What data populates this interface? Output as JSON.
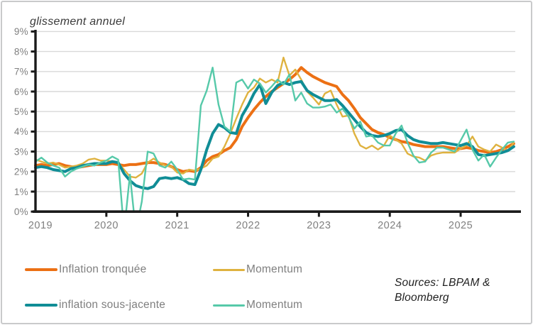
{
  "chart": {
    "title": "glissement annuel",
    "axis_color": "#1a1a1a",
    "grid_color": "#d9d9d9",
    "tick_label_color": "#7f7f7f"
  },
  "chart_data": {
    "type": "line",
    "title": "glissement annuel",
    "x_start": "2019-01",
    "x_end": "2025-10",
    "x_unit": "month",
    "ylim": [
      0,
      9
    ],
    "grid": true,
    "y_tick_labels": [
      "0%",
      "1%",
      "2%",
      "3%",
      "4%",
      "5%",
      "6%",
      "7%",
      "8%",
      "9%"
    ],
    "x_tick_labels": [
      "2019",
      "2020",
      "2021",
      "2022",
      "2023",
      "2024",
      "2025"
    ],
    "legend_position": "bottom",
    "series": [
      {
        "name": "Inflation tronquée",
        "color": "#ec7014",
        "thickness": "thick",
        "values": [
          2.3,
          2.35,
          2.3,
          2.35,
          2.4,
          2.3,
          2.25,
          2.2,
          2.25,
          2.3,
          2.35,
          2.35,
          2.35,
          2.4,
          2.35,
          2.3,
          2.35,
          2.35,
          2.4,
          2.45,
          2.45,
          2.4,
          2.35,
          2.25,
          2.1,
          2.0,
          2.05,
          2.0,
          2.2,
          2.55,
          2.75,
          2.85,
          3.05,
          3.2,
          3.6,
          4.25,
          4.7,
          5.1,
          5.45,
          5.75,
          6.0,
          6.2,
          6.4,
          6.6,
          6.85,
          7.2,
          6.95,
          6.75,
          6.6,
          6.45,
          6.35,
          6.25,
          5.85,
          5.55,
          5.15,
          4.7,
          4.4,
          4.1,
          3.95,
          3.85,
          3.7,
          3.6,
          3.5,
          3.45,
          3.35,
          3.3,
          3.25,
          3.25,
          3.25,
          3.25,
          3.2,
          3.15,
          3.15,
          3.2,
          3.15,
          3.05,
          3.0,
          2.95,
          3.0,
          3.1,
          3.25,
          3.4
        ]
      },
      {
        "name": "Momentum",
        "color": "#dfb23f",
        "thickness": "thin",
        "values": [
          2.6,
          2.5,
          2.4,
          2.45,
          2.35,
          2.2,
          2.25,
          2.3,
          2.4,
          2.6,
          2.65,
          2.55,
          2.55,
          2.5,
          2.45,
          2.1,
          1.75,
          1.7,
          1.9,
          2.45,
          2.65,
          2.45,
          2.3,
          2.25,
          1.95,
          1.9,
          2.1,
          2.05,
          2.15,
          2.3,
          2.65,
          2.75,
          3.25,
          3.9,
          4.65,
          5.35,
          5.95,
          6.2,
          6.65,
          6.45,
          6.6,
          6.45,
          7.7,
          6.8,
          7.1,
          6.6,
          6.0,
          5.7,
          5.35,
          5.9,
          6.05,
          5.35,
          4.75,
          4.8,
          3.9,
          3.3,
          3.15,
          3.3,
          3.1,
          3.3,
          3.8,
          3.6,
          3.4,
          2.9,
          2.75,
          2.7,
          2.55,
          2.8,
          2.9,
          2.95,
          2.95,
          2.95,
          3.15,
          3.3,
          3.75,
          3.25,
          3.1,
          3.0,
          3.35,
          3.2,
          3.05,
          3.45
        ]
      },
      {
        "name": "inflation sous-jacente",
        "color": "#108d96",
        "thickness": "thick",
        "values": [
          2.2,
          2.25,
          2.2,
          2.1,
          2.05,
          2.0,
          2.15,
          2.2,
          2.3,
          2.35,
          2.4,
          2.4,
          2.4,
          2.5,
          2.45,
          1.9,
          1.55,
          1.3,
          1.2,
          1.15,
          1.25,
          1.65,
          1.7,
          1.65,
          1.7,
          1.6,
          1.4,
          1.35,
          2.1,
          3.1,
          3.9,
          4.35,
          4.2,
          3.95,
          3.9,
          4.8,
          5.3,
          5.9,
          6.35,
          5.4,
          5.95,
          6.3,
          6.45,
          6.35,
          6.45,
          6.5,
          6.05,
          5.85,
          5.7,
          5.55,
          5.55,
          5.6,
          5.3,
          4.95,
          4.6,
          4.25,
          3.95,
          3.8,
          3.75,
          3.8,
          3.9,
          4.05,
          4.1,
          3.8,
          3.6,
          3.5,
          3.45,
          3.4,
          3.4,
          3.45,
          3.4,
          3.35,
          3.3,
          3.4,
          3.25,
          2.85,
          2.8,
          2.85,
          2.9,
          2.95,
          3.05,
          3.25
        ]
      },
      {
        "name": "Momentum",
        "color": "#56c9a9",
        "thickness": "thin",
        "values": [
          2.5,
          2.7,
          2.45,
          2.3,
          2.2,
          1.75,
          2.0,
          2.15,
          2.25,
          2.35,
          2.3,
          2.45,
          2.55,
          2.75,
          2.6,
          -1.0,
          1.85,
          -1.0,
          0.5,
          3.0,
          2.9,
          2.3,
          2.2,
          2.5,
          2.1,
          1.6,
          1.65,
          1.6,
          5.3,
          6.05,
          7.2,
          5.35,
          4.25,
          4.0,
          6.45,
          6.6,
          6.15,
          6.6,
          6.4,
          5.95,
          6.25,
          6.6,
          6.35,
          6.85,
          5.55,
          5.95,
          5.4,
          5.2,
          5.2,
          5.25,
          5.35,
          4.95,
          5.15,
          4.75,
          4.15,
          4.5,
          3.75,
          3.8,
          3.45,
          3.3,
          3.3,
          3.9,
          4.3,
          3.45,
          2.8,
          2.45,
          2.5,
          2.95,
          3.2,
          3.2,
          3.1,
          3.0,
          3.55,
          4.1,
          3.1,
          2.55,
          2.85,
          2.25,
          2.7,
          3.1,
          3.45,
          3.5
        ]
      }
    ]
  },
  "legend": {
    "items": [
      {
        "label": "Inflation tronquée"
      },
      {
        "label": "Momentum"
      },
      {
        "label": "inflation sous-jacente"
      },
      {
        "label": "Momentum"
      }
    ]
  },
  "source": {
    "text": "Sources: LBPAM & Bloomberg"
  }
}
